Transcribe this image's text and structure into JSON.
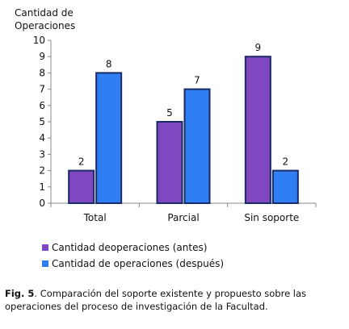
{
  "chart_data": {
    "type": "bar",
    "ylabel_lines": [
      "Cantidad de",
      "Operaciones"
    ],
    "categories": [
      "Total",
      "Parcial",
      "Sin soporte"
    ],
    "series": [
      {
        "name": "Cantidad deoperaciones (antes)",
        "values": [
          2,
          5,
          9
        ],
        "color": "#7f48c0"
      },
      {
        "name": "Cantidad de operaciones (después)",
        "values": [
          8,
          7,
          2
        ],
        "color": "#2f7ef2"
      }
    ],
    "ylim": [
      0,
      10
    ],
    "yticks": [
      0,
      1,
      2,
      3,
      4,
      5,
      6,
      7,
      8,
      9,
      10
    ],
    "data_labels": true,
    "grid": false,
    "legend_position": "bottom-left"
  },
  "caption": {
    "label": "Fig. 5",
    "text": ".  Comparación del soporte existente y propuesto sobre las operaciones del proceso de investigación de la Facultad."
  },
  "colors": {
    "axis": "#888888",
    "bar_border": "#1a2a66"
  }
}
